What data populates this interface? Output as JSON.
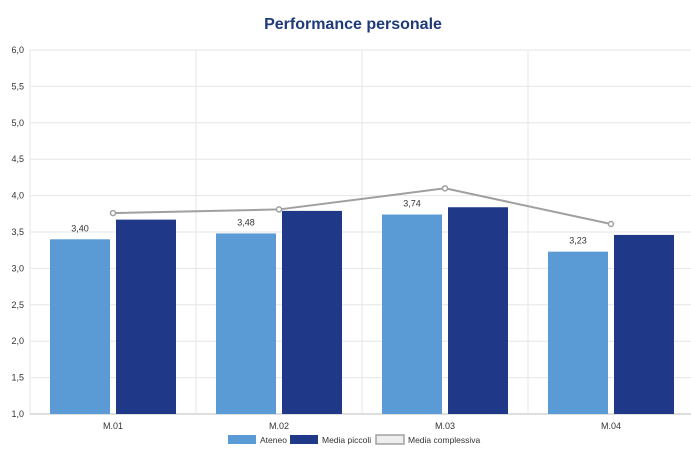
{
  "chart_data": {
    "type": "bar",
    "title": "Performance personale",
    "xlabel": "",
    "ylabel": "",
    "categories": [
      "M.01",
      "M.02",
      "M.03",
      "M.04"
    ],
    "ylim": [
      1.0,
      6.0
    ],
    "yticks": [
      "1,0",
      "1,5",
      "2,0",
      "2,5",
      "3,0",
      "3,5",
      "4,0",
      "4,5",
      "5,0",
      "5,5",
      "6,0"
    ],
    "grid": true,
    "legend_position": "bottom",
    "series": [
      {
        "name": "Ateneo",
        "kind": "bar",
        "color": "#5b9bd5",
        "values": [
          3.4,
          3.48,
          3.74,
          3.23
        ],
        "labels": [
          "3,40",
          "3,48",
          "3,74",
          "3,23"
        ]
      },
      {
        "name": "Media piccoli",
        "kind": "bar",
        "color": "#1f3888",
        "values": [
          3.67,
          3.79,
          3.84,
          3.46
        ]
      },
      {
        "name": "Media complessiva",
        "kind": "line",
        "color": "#a0a0a0",
        "values": [
          3.76,
          3.81,
          4.1,
          3.61
        ]
      }
    ]
  }
}
